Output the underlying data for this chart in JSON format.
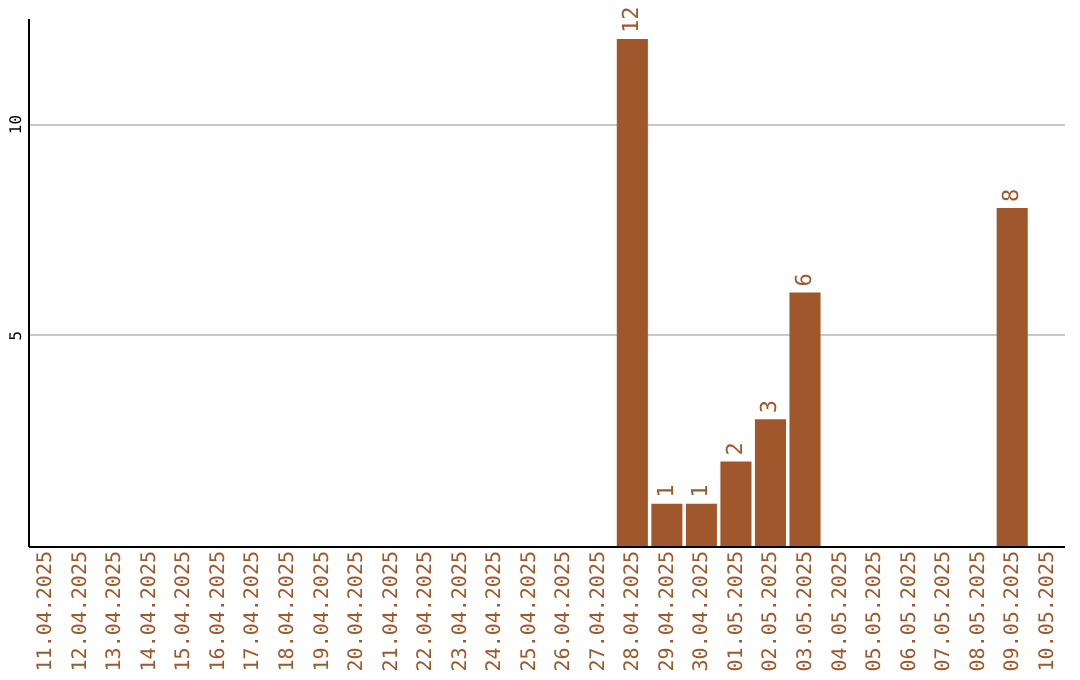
{
  "chart_data": {
    "type": "bar",
    "categories": [
      "11.04.2025",
      "12.04.2025",
      "13.04.2025",
      "14.04.2025",
      "15.04.2025",
      "16.04.2025",
      "17.04.2025",
      "18.04.2025",
      "19.04.2025",
      "20.04.2025",
      "21.04.2025",
      "22.04.2025",
      "23.04.2025",
      "24.04.2025",
      "25.04.2025",
      "26.04.2025",
      "27.04.2025",
      "28.04.2025",
      "29.04.2025",
      "30.04.2025",
      "01.05.2025",
      "02.05.2025",
      "03.05.2025",
      "04.05.2025",
      "05.05.2025",
      "06.05.2025",
      "07.05.2025",
      "08.05.2025",
      "09.05.2025",
      "10.05.2025"
    ],
    "values": [
      0,
      0,
      0,
      0,
      0,
      0,
      0,
      0,
      0,
      0,
      0,
      0,
      0,
      0,
      0,
      0,
      0,
      12,
      1,
      1,
      2,
      3,
      6,
      0,
      0,
      0,
      0,
      0,
      8,
      0
    ],
    "value_labels": [
      null,
      null,
      null,
      null,
      null,
      null,
      null,
      null,
      null,
      null,
      null,
      null,
      null,
      null,
      null,
      null,
      null,
      "12",
      "1",
      "1",
      "2",
      "3",
      "6",
      null,
      null,
      null,
      null,
      null,
      "8",
      null
    ],
    "color": "#a0572b",
    "ylim": [
      0,
      12.5
    ],
    "yticks": [
      5,
      10
    ],
    "grid": "y"
  }
}
